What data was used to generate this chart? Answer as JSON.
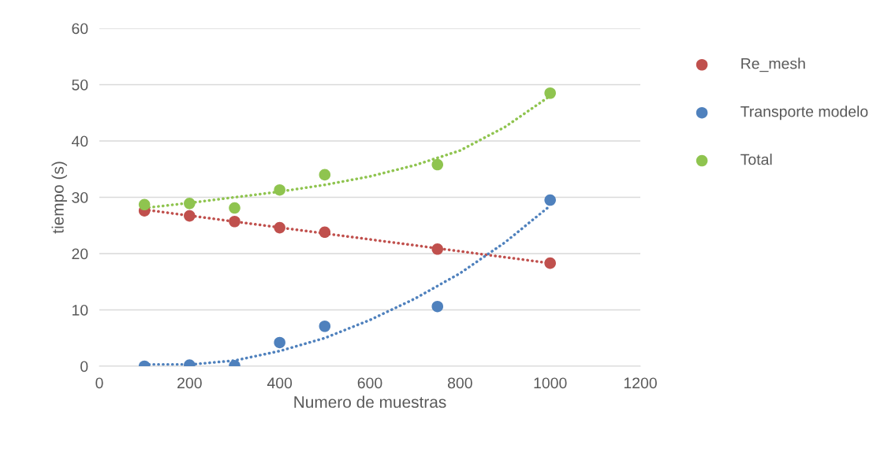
{
  "chart_data": {
    "type": "scatter",
    "xlabel": "Numero de muestras",
    "ylabel": "tiempo (s)",
    "xlim": [
      0,
      1200
    ],
    "xticks": [
      0,
      200,
      400,
      600,
      800,
      1000,
      1200
    ],
    "ylim": [
      0,
      60
    ],
    "yticks": [
      0,
      10,
      20,
      30,
      40,
      50,
      60
    ],
    "grid": "y",
    "legend": "right",
    "series": [
      {
        "name": "Re_mesh",
        "marker": "circle",
        "color": "#c0504d",
        "x": [
          100,
          200,
          300,
          400,
          500,
          750,
          1000
        ],
        "values": [
          27.6,
          26.7,
          25.7,
          24.6,
          23.8,
          20.8,
          18.3
        ]
      },
      {
        "name": "Transporte modelo",
        "marker": "circle",
        "color": "#4f81bd",
        "x": [
          100,
          200,
          300,
          400,
          500,
          750,
          1000
        ],
        "values": [
          0.0,
          0.2,
          0.1,
          4.2,
          7.1,
          10.6,
          29.5
        ]
      },
      {
        "name": "Total",
        "marker": "circle",
        "color": "#8fc44f",
        "x": [
          100,
          200,
          300,
          400,
          500,
          750,
          1000
        ],
        "values": [
          28.7,
          28.9,
          28.1,
          31.3,
          34.0,
          35.8,
          48.5
        ]
      },
      {
        "type": "line",
        "line_style": "dotted",
        "color": "#c0504d",
        "x": [
          100,
          1000
        ],
        "values": [
          27.8,
          18.3
        ]
      },
      {
        "type": "line",
        "line_style": "dotted",
        "color": "#4f81bd",
        "x": [
          100,
          200,
          300,
          400,
          500,
          600,
          700,
          800,
          900,
          1000
        ],
        "values": [
          0.3,
          0.3,
          1.0,
          2.7,
          5.0,
          8.2,
          12.0,
          16.5,
          22.0,
          28.5
        ]
      },
      {
        "type": "line",
        "line_style": "dotted",
        "color": "#8fc44f",
        "x": [
          100,
          200,
          300,
          400,
          500,
          600,
          700,
          800,
          900,
          1000
        ],
        "values": [
          28.1,
          29.0,
          30.0,
          31.0,
          32.2,
          33.7,
          35.7,
          38.3,
          42.5,
          48.0
        ]
      }
    ]
  }
}
